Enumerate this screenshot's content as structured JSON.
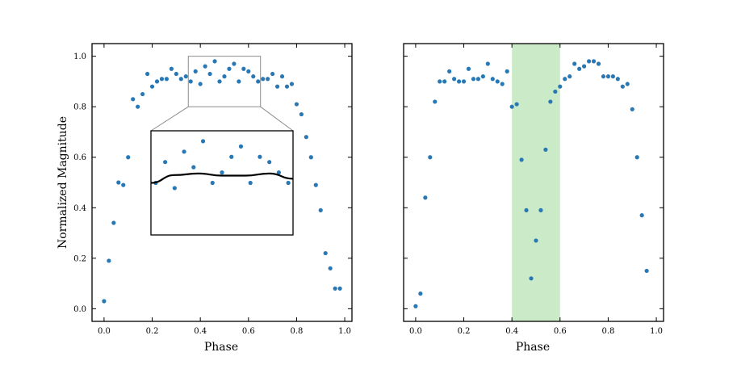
{
  "figure": {
    "ylabel": "Normalized Magnitude",
    "point_color": "#2878b5",
    "highlight_color": "#a9dca4",
    "inset_border_color": "#8c8c8c"
  },
  "chart_data": [
    {
      "type": "scatter",
      "xlabel": "Phase",
      "ylabel": "Normalized Magnitude",
      "xlim": [
        -0.05,
        1.03
      ],
      "ylim": [
        -0.05,
        1.05
      ],
      "xticks": [
        "0.0",
        "0.2",
        "0.4",
        "0.6",
        "0.8",
        "1.0"
      ],
      "yticks": [
        "0.0",
        "0.2",
        "0.4",
        "0.6",
        "0.8",
        "1.0"
      ],
      "x": [
        0.0,
        0.02,
        0.04,
        0.06,
        0.08,
        0.1,
        0.12,
        0.14,
        0.16,
        0.18,
        0.2,
        0.22,
        0.24,
        0.26,
        0.28,
        0.3,
        0.32,
        0.34,
        0.36,
        0.38,
        0.4,
        0.42,
        0.44,
        0.46,
        0.48,
        0.5,
        0.52,
        0.54,
        0.56,
        0.58,
        0.6,
        0.62,
        0.64,
        0.66,
        0.68,
        0.7,
        0.72,
        0.74,
        0.76,
        0.78,
        0.8,
        0.82,
        0.84,
        0.86,
        0.88,
        0.9,
        0.92,
        0.94,
        0.96,
        0.98
      ],
      "y": [
        0.03,
        0.19,
        0.34,
        0.5,
        0.49,
        0.6,
        0.83,
        0.8,
        0.85,
        0.93,
        0.88,
        0.9,
        0.91,
        0.91,
        0.95,
        0.93,
        0.91,
        0.92,
        0.9,
        0.94,
        0.89,
        0.96,
        0.93,
        0.98,
        0.9,
        0.92,
        0.95,
        0.97,
        0.9,
        0.95,
        0.94,
        0.92,
        0.9,
        0.91,
        0.91,
        0.93,
        0.88,
        0.92,
        0.88,
        0.89,
        0.81,
        0.77,
        0.68,
        0.6,
        0.49,
        0.39,
        0.22,
        0.16,
        0.08,
        0.08
      ],
      "inset": {
        "zoom_xlim": [
          0.35,
          0.65
        ],
        "zoom_ylim": [
          0.8,
          1.0
        ],
        "fit_line": {
          "x": [
            0.35,
            0.4,
            0.45,
            0.5,
            0.55,
            0.6,
            0.65
          ],
          "y": [
            0.9,
            0.915,
            0.918,
            0.914,
            0.914,
            0.918,
            0.908
          ]
        }
      }
    },
    {
      "type": "scatter",
      "xlabel": "Phase",
      "xlim": [
        -0.05,
        1.03
      ],
      "ylim": [
        -0.05,
        1.05
      ],
      "xticks": [
        "0.0",
        "0.2",
        "0.4",
        "0.6",
        "0.8",
        "1.0"
      ],
      "x": [
        0.0,
        0.02,
        0.04,
        0.06,
        0.08,
        0.1,
        0.12,
        0.14,
        0.16,
        0.18,
        0.2,
        0.22,
        0.24,
        0.26,
        0.28,
        0.3,
        0.32,
        0.34,
        0.36,
        0.38,
        0.4,
        0.42,
        0.44,
        0.46,
        0.48,
        0.5,
        0.52,
        0.54,
        0.56,
        0.58,
        0.6,
        0.62,
        0.64,
        0.66,
        0.68,
        0.7,
        0.72,
        0.74,
        0.76,
        0.78,
        0.8,
        0.82,
        0.84,
        0.86,
        0.88,
        0.9,
        0.92,
        0.94,
        0.96
      ],
      "y": [
        0.01,
        0.06,
        0.44,
        0.6,
        0.82,
        0.9,
        0.9,
        0.94,
        0.91,
        0.9,
        0.9,
        0.95,
        0.91,
        0.91,
        0.92,
        0.97,
        0.91,
        0.9,
        0.89,
        0.94,
        0.8,
        0.81,
        0.59,
        0.39,
        0.12,
        0.27,
        0.39,
        0.63,
        0.82,
        0.86,
        0.88,
        0.91,
        0.92,
        0.97,
        0.95,
        0.96,
        0.98,
        0.98,
        0.97,
        0.92,
        0.92,
        0.92,
        0.91,
        0.88,
        0.89,
        0.79,
        0.6,
        0.37,
        0.15
      ],
      "highlight": {
        "x_start": 0.4,
        "x_end": 0.6
      }
    }
  ]
}
